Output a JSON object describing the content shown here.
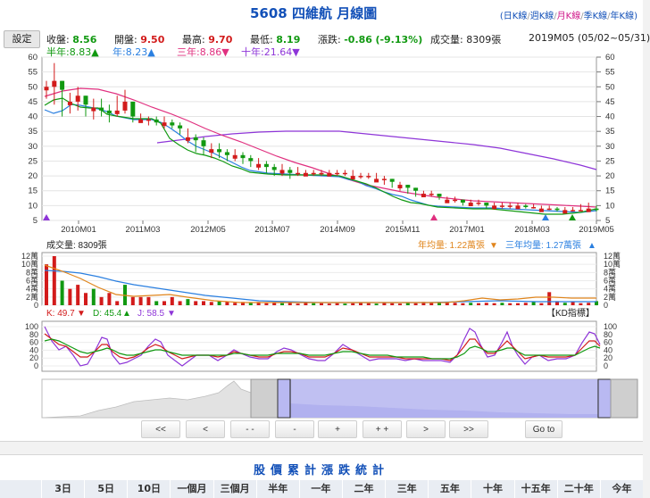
{
  "title": "5608 四維航  月線圖",
  "period_links": [
    {
      "label": "日K線",
      "active": false
    },
    {
      "label": "週K線",
      "active": false
    },
    {
      "label": "月K線",
      "active": true
    },
    {
      "label": "季K線",
      "active": false
    },
    {
      "label": "年K線",
      "active": false
    }
  ],
  "settings_label": "設定",
  "quote": {
    "close_label": "收盤:",
    "close_value": "8.56",
    "open_label": "開盤:",
    "open_value": "9.50",
    "high_label": "最高:",
    "high_value": "9.70",
    "low_label": "最低:",
    "low_value": "8.19",
    "change_label": "漲跌:",
    "change_value": "-0.86",
    "change_pct": "(-9.13%)",
    "volume_text": "成交量: 8309張",
    "period_range": "2019M05 (05/02~05/31)"
  },
  "ma_legend": [
    {
      "label": "半年:8.83",
      "arrow": "▲",
      "color": "#119911"
    },
    {
      "label": "年:8.23",
      "arrow": "▲",
      "color": "#2a7fe0"
    },
    {
      "label": "三年:8.86",
      "arrow": "▼",
      "color": "#e0307f"
    },
    {
      "label": "十年:21.64",
      "arrow": "▼",
      "color": "#8e35d8"
    }
  ],
  "price_axis": {
    "min": 5,
    "max": 60,
    "ticks": [
      5,
      10,
      15,
      20,
      25,
      30,
      35,
      40,
      45,
      50,
      55,
      60
    ]
  },
  "time_axis": {
    "labels": [
      "2010M01",
      "2011M03",
      "2012M05",
      "2013M07",
      "2014M09",
      "2015M11",
      "2017M01",
      "2018M03",
      "2019M05"
    ]
  },
  "volume_panel": {
    "title": "成交量: 8309張",
    "year_avg": "年均量: 1.22萬張",
    "year_avg_arrow": "▼",
    "three_year_avg": "三年均量: 1.27萬張",
    "three_year_avg_arrow": "▲",
    "axis_labels": [
      "12萬",
      "10萬",
      "8萬",
      "6萬",
      "4萬",
      "2萬",
      "0"
    ]
  },
  "kd_panel": {
    "k_label": "K: 49.7",
    "k_arrow": "▼",
    "d_label": "D: 45.4",
    "d_arrow": "▲",
    "j_label": "J: 58.5",
    "j_arrow": "▼",
    "indicator_button": "【KD指標】",
    "axis_labels": [
      "100",
      "80",
      "60",
      "40",
      "20",
      "0"
    ]
  },
  "nav_buttons": [
    "<<",
    "<",
    "- -",
    "-",
    "+",
    "+ +",
    ">",
    ">>",
    "Go to"
  ],
  "stats": {
    "title": "股價累計漲跌統計",
    "headers": [
      "3日",
      "5日",
      "10日",
      "一個月",
      "三個月",
      "半年",
      "一年",
      "二年",
      "三年",
      "五年",
      "十年",
      "十五年",
      "二十年",
      "今年"
    ]
  },
  "colors": {
    "up": "#d21b1b",
    "down": "#119911",
    "accent": "#1250b8"
  }
}
